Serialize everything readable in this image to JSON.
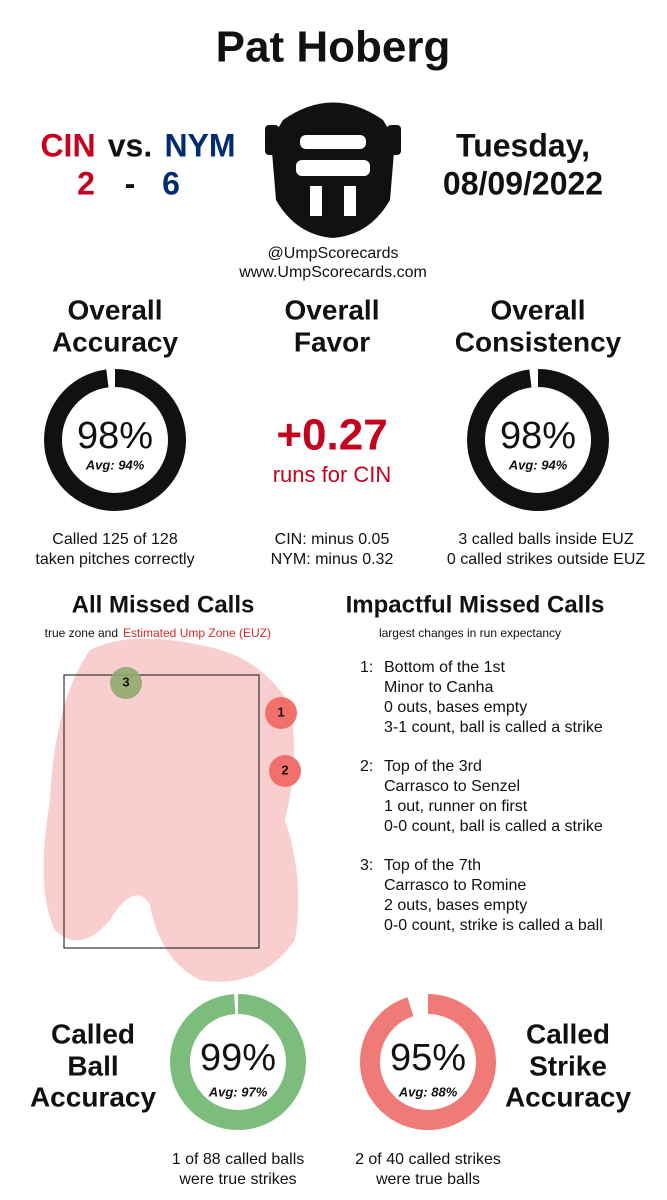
{
  "header": {
    "title": "Pat Hoberg",
    "away": "CIN",
    "vs": "vs.",
    "home": "NYM",
    "away_score": "2",
    "dash": "-",
    "home_score": "6",
    "day": "Tuesday,",
    "date": "08/09/2022",
    "handle": "@UmpScorecards",
    "site": "www.UmpScorecards.com"
  },
  "accuracy": {
    "title": [
      "Overall",
      "Accuracy"
    ],
    "value": 98,
    "label": "98%",
    "avg": "Avg: 94%",
    "caption": [
      "Called 125 of 128",
      "taken pitches correctly"
    ]
  },
  "favor": {
    "title": [
      "Overall",
      "Favor"
    ],
    "value": "+0.27",
    "sub": "runs for CIN",
    "caption": [
      "CIN: minus 0.05",
      "NYM: minus 0.32"
    ]
  },
  "consistency": {
    "title": [
      "Overall",
      "Consistency"
    ],
    "value": 98,
    "label": "98%",
    "avg": "Avg: 94%",
    "caption": [
      "3 called balls inside EUZ",
      "0 called strikes outside EUZ"
    ]
  },
  "missed": {
    "title": "All Missed Calls",
    "note": "true zone and",
    "note_red": "Estimated Ump Zone (EUZ)",
    "points": [
      "3",
      "1",
      "2"
    ]
  },
  "impactful": {
    "title": "Impactful Missed Calls",
    "note": "largest changes in run expectancy",
    "items": [
      {
        "num": "1:",
        "lines": [
          "Bottom of the 1st",
          "Minor to Canha",
          "0 outs, bases empty",
          "3-1 count, ball is called a strike"
        ]
      },
      {
        "num": "2:",
        "lines": [
          "Top of the 3rd",
          "Carrasco to Senzel",
          "1 out, runner on first",
          "0-0 count, ball is called a strike"
        ]
      },
      {
        "num": "3:",
        "lines": [
          "Top of the 7th",
          "Carrasco to Romine",
          "2 outs, bases empty",
          "0-0 count, strike is called a ball"
        ]
      }
    ]
  },
  "ball": {
    "title": [
      "Called",
      "Ball",
      "Accuracy"
    ],
    "value": 99,
    "label": "99%",
    "avg": "Avg: 97%",
    "caption": [
      "1 of 88 called balls",
      "were true strikes"
    ]
  },
  "strike": {
    "title": [
      "Called",
      "Strike",
      "Accuracy"
    ],
    "value": 95,
    "label": "95%",
    "avg": "Avg: 88%",
    "caption": [
      "2 of 40 called strikes",
      "were true balls"
    ]
  }
}
